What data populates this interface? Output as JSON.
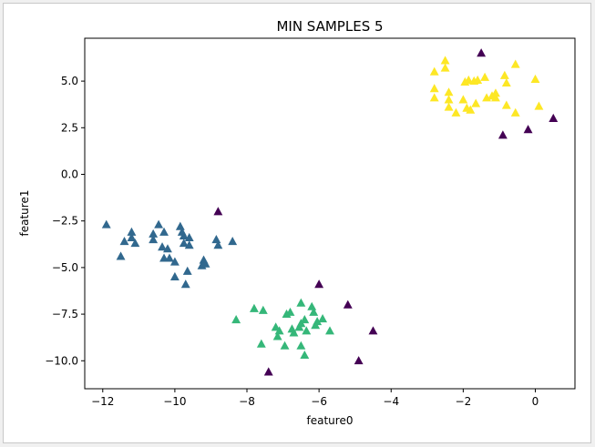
{
  "chart_data": {
    "type": "scatter",
    "title": "MIN SAMPLES 5",
    "xlabel": "feature0",
    "ylabel": "feature1",
    "xlim": [
      -12.5,
      1.1
    ],
    "ylim": [
      -11.5,
      7.3
    ],
    "xticks": [
      -12,
      -10,
      -8,
      -6,
      -4,
      -2,
      0
    ],
    "xtick_labels": [
      "−12",
      "−10",
      "−8",
      "−6",
      "−4",
      "−2",
      "0"
    ],
    "yticks": [
      -10.0,
      -7.5,
      -5.0,
      -2.5,
      0.0,
      2.5,
      5.0
    ],
    "ytick_labels": [
      "−10.0",
      "−7.5",
      "−5.0",
      "−2.5",
      "0.0",
      "2.5",
      "5.0"
    ],
    "marker": "triangle",
    "grid": false,
    "series": [
      {
        "color": "#440154",
        "points": [
          [
            -1.5,
            6.5
          ],
          [
            0.5,
            3.0
          ],
          [
            -0.2,
            2.4
          ],
          [
            -0.9,
            2.1
          ],
          [
            -8.8,
            -2.0
          ],
          [
            -6.0,
            -5.9
          ],
          [
            -5.2,
            -7.0
          ],
          [
            -4.5,
            -8.4
          ],
          [
            -4.9,
            -10.0
          ],
          [
            -7.4,
            -10.6
          ]
        ]
      },
      {
        "color": "#31688e",
        "points": [
          [
            -11.9,
            -2.7
          ],
          [
            -11.5,
            -4.4
          ],
          [
            -11.4,
            -3.6
          ],
          [
            -11.2,
            -3.1
          ],
          [
            -11.2,
            -3.4
          ],
          [
            -11.1,
            -3.7
          ],
          [
            -10.6,
            -3.5
          ],
          [
            -10.6,
            -3.2
          ],
          [
            -10.45,
            -2.7
          ],
          [
            -10.3,
            -3.1
          ],
          [
            -10.35,
            -3.9
          ],
          [
            -10.2,
            -4.0
          ],
          [
            -10.3,
            -4.5
          ],
          [
            -10.15,
            -4.5
          ],
          [
            -10.0,
            -4.7
          ],
          [
            -10.0,
            -5.5
          ],
          [
            -9.85,
            -2.8
          ],
          [
            -9.8,
            -3.1
          ],
          [
            -9.75,
            -3.3
          ],
          [
            -9.75,
            -3.7
          ],
          [
            -9.6,
            -3.4
          ],
          [
            -9.6,
            -3.8
          ],
          [
            -9.65,
            -5.2
          ],
          [
            -9.7,
            -5.9
          ],
          [
            -9.2,
            -4.6
          ],
          [
            -9.25,
            -4.9
          ],
          [
            -9.15,
            -4.8
          ],
          [
            -8.85,
            -3.5
          ],
          [
            -8.8,
            -3.8
          ],
          [
            -8.4,
            -3.6
          ]
        ]
      },
      {
        "color": "#35b779",
        "points": [
          [
            -8.3,
            -7.8
          ],
          [
            -7.8,
            -7.2
          ],
          [
            -7.55,
            -7.3
          ],
          [
            -7.6,
            -9.1
          ],
          [
            -7.2,
            -8.2
          ],
          [
            -7.15,
            -8.7
          ],
          [
            -7.1,
            -8.4
          ],
          [
            -6.95,
            -9.2
          ],
          [
            -6.9,
            -7.5
          ],
          [
            -6.8,
            -7.4
          ],
          [
            -6.75,
            -8.3
          ],
          [
            -6.7,
            -8.5
          ],
          [
            -6.55,
            -8.2
          ],
          [
            -6.5,
            -6.9
          ],
          [
            -6.5,
            -8.0
          ],
          [
            -6.4,
            -7.8
          ],
          [
            -6.35,
            -8.4
          ],
          [
            -6.2,
            -7.1
          ],
          [
            -6.15,
            -7.4
          ],
          [
            -6.05,
            -7.9
          ],
          [
            -6.1,
            -8.1
          ],
          [
            -5.9,
            -7.75
          ],
          [
            -5.7,
            -8.4
          ],
          [
            -6.5,
            -9.2
          ],
          [
            -6.4,
            -9.7
          ]
        ]
      },
      {
        "color": "#fde725",
        "points": [
          [
            -2.8,
            5.5
          ],
          [
            -2.8,
            4.6
          ],
          [
            -2.8,
            4.1
          ],
          [
            -2.5,
            5.7
          ],
          [
            -2.5,
            6.1
          ],
          [
            -2.4,
            4.4
          ],
          [
            -2.4,
            4.0
          ],
          [
            -2.4,
            3.6
          ],
          [
            -2.2,
            3.3
          ],
          [
            -2.0,
            4.0
          ],
          [
            -1.95,
            4.95
          ],
          [
            -1.85,
            5.05
          ],
          [
            -1.9,
            3.55
          ],
          [
            -1.8,
            3.45
          ],
          [
            -1.7,
            5.0
          ],
          [
            -1.65,
            3.8
          ],
          [
            -1.6,
            5.05
          ],
          [
            -1.4,
            5.2
          ],
          [
            -1.35,
            4.1
          ],
          [
            -1.2,
            4.2
          ],
          [
            -1.1,
            4.1
          ],
          [
            -1.1,
            4.35
          ],
          [
            -0.85,
            5.3
          ],
          [
            -0.8,
            4.9
          ],
          [
            -0.8,
            3.7
          ],
          [
            -0.55,
            5.9
          ],
          [
            -0.55,
            3.3
          ],
          [
            0.0,
            5.1
          ],
          [
            0.1,
            3.65
          ]
        ]
      }
    ]
  }
}
